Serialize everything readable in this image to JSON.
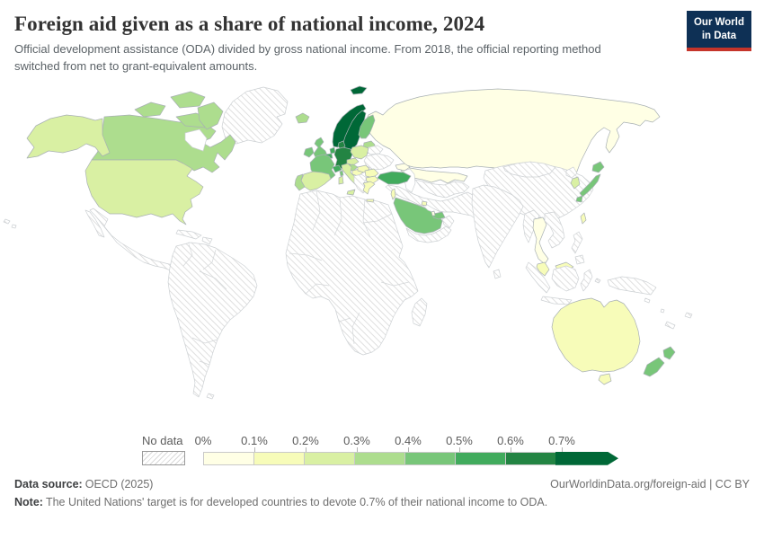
{
  "header": {
    "title": "Foreign aid given as a share of national income, 2024",
    "subtitle": "Official development assistance (ODA) divided by gross national income. From 2018, the official reporting method switched from net to grant-equivalent amounts.",
    "logo_line1": "Our World",
    "logo_line2": "in Data",
    "logo_bg": "#0e3055",
    "logo_accent": "#c5342a"
  },
  "legend": {
    "no_data_label": "No data",
    "tick_labels": [
      "0%",
      "0.1%",
      "0.2%",
      "0.3%",
      "0.4%",
      "0.5%",
      "0.6%",
      "0.7%"
    ],
    "bin_colors": [
      "#ffffe5",
      "#f7fcb9",
      "#d9f0a3",
      "#addd8e",
      "#78c679",
      "#41ab5d",
      "#238443",
      "#006837"
    ]
  },
  "chart_data": {
    "type": "heatmap",
    "title": "Foreign aid given as a share of national income, 2024",
    "unit": "% of gross national income",
    "legend_bins": [
      "0-0.1%",
      "0.1-0.2%",
      "0.2-0.3%",
      "0.3-0.4%",
      "0.4-0.5%",
      "0.5-0.6%",
      "0.6-0.7%",
      "0.7%+"
    ],
    "note": "Values are bin indices (0 = 0-0.1% ... 7 = 0.7%+); 'nodata' = hatched"
  },
  "map": {
    "border_color_data": "#a8b0b4",
    "border_color_nodata": "#cdd1d4",
    "countries": {
      "greenland": "nodata",
      "canada": 3,
      "usa": 2,
      "mexico": "nodata",
      "cuba": "nodata",
      "hispaniola": "nodata",
      "jamaica": "nodata",
      "south-america": "nodata",
      "falklands": "nodata",
      "africa": "nodata",
      "madagascar": "nodata",
      "iceland": 3,
      "svalbard": 7,
      "norway": 7,
      "sweden": 7,
      "finland": 4,
      "denmark": 6,
      "baltics": 3,
      "uk": 4,
      "ireland": 4,
      "netherlands": 5,
      "belgium": 5,
      "germany": 6,
      "poland": 2,
      "czechia": 2,
      "austria": 3,
      "switzerland": 5,
      "france": 4,
      "spain": 2,
      "portugal": 3,
      "italy": 2,
      "slovenia-croatia": 1,
      "balkans": "nodata",
      "hungary": 1,
      "romania": 1,
      "bulgaria": 1,
      "greece": 1,
      "ukraine": "nodata",
      "belarus": "nodata",
      "russia": 0,
      "kazakhstan": 0,
      "caucasus": 0,
      "central-asia": "nodata",
      "turkey": 5,
      "iran-region": "nodata",
      "israel": 1,
      "saudi-arabia": 4,
      "yemen-oman": "nodata",
      "uae": 4,
      "qatar": 0,
      "kuwait": 1,
      "india": "nodata",
      "sri-lanka": "nodata",
      "china": "nodata",
      "mongolia": "nodata",
      "myanmar": "nodata",
      "thailand": 0,
      "indochina": "nodata",
      "malaysia": 1,
      "indonesia": "nodata",
      "new-guinea": "nodata",
      "philippines": "nodata",
      "japan": 4,
      "north-korea": "nodata",
      "south-korea": 2,
      "taiwan": 1,
      "australia": 1,
      "new-zealand": 4,
      "pacific": "nodata"
    }
  },
  "footer": {
    "datasource_label": "Data source:",
    "datasource_value": "OECD (2025)",
    "url_text": "OurWorldinData.org/foreign-aid | CC BY",
    "note_label": "Note:",
    "note_value": "The United Nations' target is for developed countries to devote 0.7% of their national income to ODA."
  }
}
